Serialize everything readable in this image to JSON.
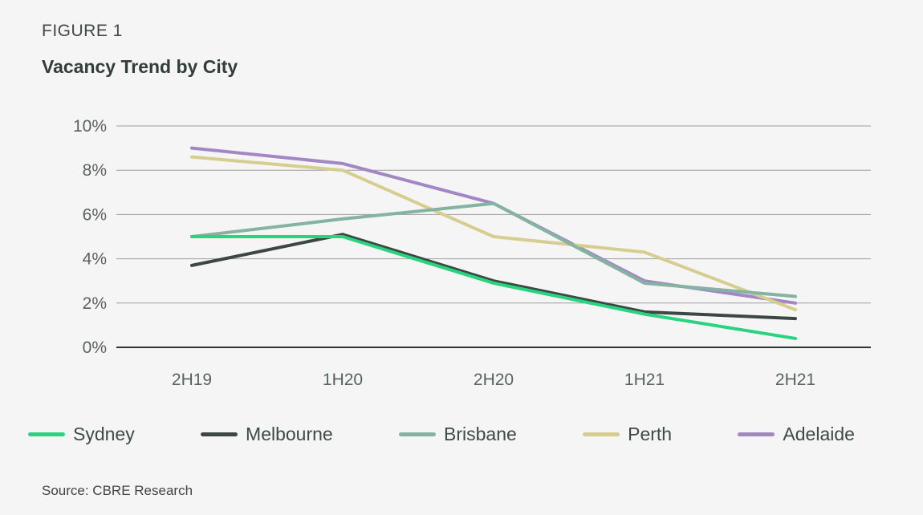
{
  "header": {
    "figure_label": "FIGURE 1",
    "title": "Vacancy Trend by City"
  },
  "source": {
    "text": "Source: CBRE Research"
  },
  "chart_data": {
    "type": "line",
    "title": "Vacancy Trend by City",
    "categories": [
      "2H19",
      "1H20",
      "2H20",
      "1H21",
      "2H21"
    ],
    "series": [
      {
        "name": "Sydney",
        "color": "#29d47e",
        "values": [
          5.0,
          5.0,
          2.9,
          1.5,
          0.4
        ]
      },
      {
        "name": "Melbourne",
        "color": "#3c4744",
        "values": [
          3.7,
          5.1,
          3.0,
          1.6,
          1.3
        ]
      },
      {
        "name": "Brisbane",
        "color": "#84b3a1",
        "values": [
          5.0,
          5.8,
          6.5,
          2.9,
          2.3
        ]
      },
      {
        "name": "Perth",
        "color": "#d6cd8f",
        "values": [
          8.6,
          8.0,
          5.0,
          4.3,
          1.7
        ]
      },
      {
        "name": "Adelaide",
        "color": "#a287c4",
        "values": [
          9.0,
          8.3,
          6.5,
          3.0,
          2.0
        ]
      }
    ],
    "ylim": [
      0,
      10
    ],
    "yticks": [
      0,
      2,
      4,
      6,
      8,
      10
    ],
    "ytick_suffix": "%",
    "grid": true,
    "legend_position": "bottom",
    "colors": {
      "gridline": "#9aa09d",
      "baseline": "#2f3331",
      "tick_text": "#5a625f"
    }
  }
}
